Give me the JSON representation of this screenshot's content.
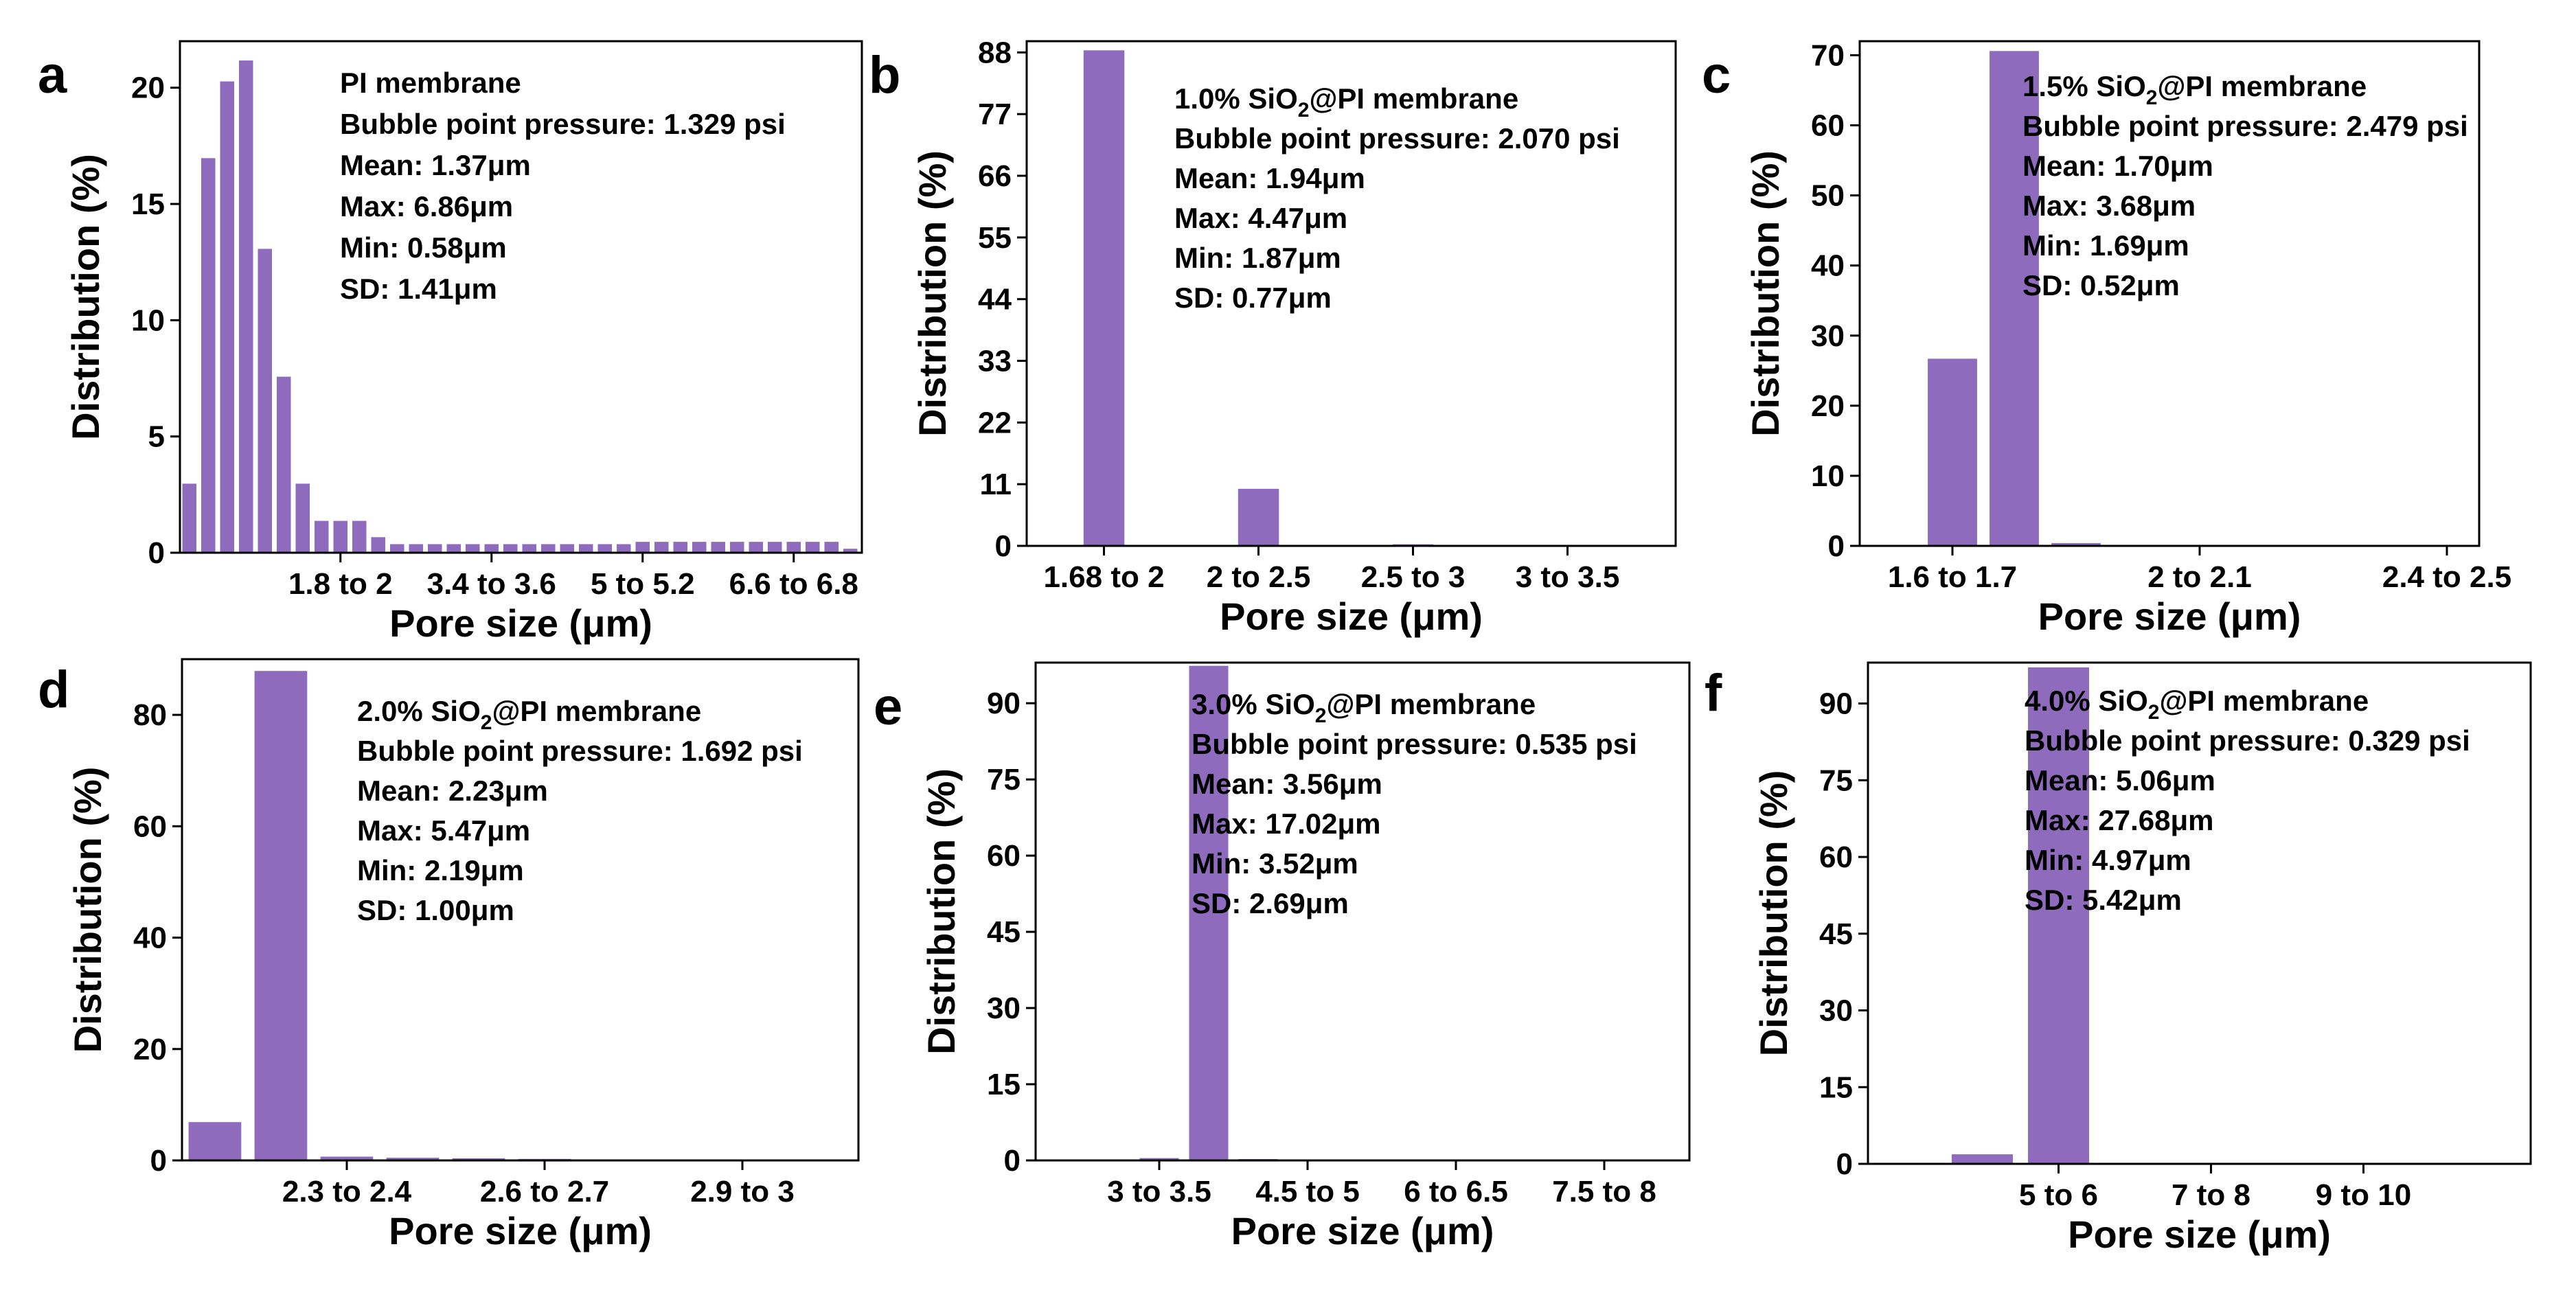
{
  "figure": {
    "bar_color": "#8e6bbd",
    "bar_edge": "#ffffff"
  },
  "chart_data": [
    {
      "panel": "a",
      "type": "bar",
      "ylabel": "Distribution (%)",
      "xlabel": "Pore size (μm)",
      "ylim": [
        0,
        22
      ],
      "yticks": [
        0,
        5,
        10,
        15,
        20
      ],
      "xtick_labels": [
        "1.8 to 2",
        "3.4 to 3.6",
        "5 to 5.2",
        "6.6 to 6.8"
      ],
      "xtick_bins": [
        8,
        16,
        24,
        32
      ],
      "values": [
        3.0,
        17.0,
        20.3,
        21.2,
        13.1,
        7.6,
        3.0,
        1.4,
        1.4,
        1.4,
        0.7,
        0.4,
        0.4,
        0.4,
        0.4,
        0.4,
        0.4,
        0.4,
        0.4,
        0.4,
        0.4,
        0.4,
        0.4,
        0.4,
        0.5,
        0.5,
        0.5,
        0.5,
        0.5,
        0.5,
        0.5,
        0.5,
        0.5,
        0.5,
        0.5,
        0.2
      ],
      "annotations": [
        {
          "text": "PI membrane"
        },
        {
          "text": "Bubble point pressure: 1.329 psi"
        },
        {
          "text": "Mean: 1.37μm"
        },
        {
          "text": "Max: 6.86μm"
        },
        {
          "text": "Min: 0.58μm"
        },
        {
          "text": "SD: 1.41μm"
        }
      ]
    },
    {
      "panel": "b",
      "type": "bar",
      "ylabel": "Distribution (%)",
      "xlabel": "Pore size (μm)",
      "ylim": [
        0,
        90
      ],
      "yticks": [
        0,
        11,
        22,
        33,
        44,
        55,
        66,
        77,
        88
      ],
      "xtick_labels": [
        "1.68 to 2",
        "2 to 2.5",
        "2.5 to 3",
        "3 to 3.5"
      ],
      "xtick_bins": [
        1,
        4,
        7,
        10
      ],
      "values": [
        0,
        88.5,
        0,
        0,
        10.3,
        0,
        0,
        0.4,
        0,
        0,
        0
      ],
      "annotations": [
        {
          "pre": "1.0% SiO",
          "sub": "2",
          "post": "@PI membrane"
        },
        {
          "text": "Bubble point pressure: 2.070 psi"
        },
        {
          "text": "Mean: 1.94μm"
        },
        {
          "text": "Max: 4.47μm"
        },
        {
          "text": "Min: 1.87μm"
        },
        {
          "text": "SD: 0.77μm"
        }
      ]
    },
    {
      "panel": "c",
      "type": "bar",
      "ylabel": "Distribution (%)",
      "xlabel": "Pore size (μm)",
      "ylim": [
        0,
        72
      ],
      "yticks": [
        0,
        10,
        20,
        30,
        40,
        50,
        60,
        70
      ],
      "xtick_labels": [
        "1.6 to 1.7",
        "2 to 2.1",
        "2.4 to 2.5"
      ],
      "xtick_bins": [
        1,
        5,
        9
      ],
      "values": [
        0,
        26.8,
        70.7,
        0.5,
        0.2,
        0.2,
        0.1,
        0.1,
        0.1,
        0.1,
        0
      ],
      "annotations": [
        {
          "pre": "1.5% SiO",
          "sub": "2",
          "post": "@PI membrane"
        },
        {
          "text": "Bubble point pressure: 2.479 psi"
        },
        {
          "text": "Mean: 1.70μm"
        },
        {
          "text": "Max: 3.68μm"
        },
        {
          "text": "Min: 1.69μm"
        },
        {
          "text": "SD: 0.52μm"
        }
      ]
    },
    {
      "panel": "d",
      "type": "bar",
      "ylabel": "Distribution (%)",
      "xlabel": "Pore size (μm)",
      "ylim": [
        0,
        90
      ],
      "yticks": [
        0,
        20,
        40,
        60,
        80
      ],
      "xtick_labels": [
        "2.3 to 2.4",
        "2.6 to 2.7",
        "2.9 to 3"
      ],
      "xtick_bins": [
        2,
        5,
        8
      ],
      "values": [
        7.0,
        88.0,
        0.8,
        0.6,
        0.5,
        0.4,
        0.3,
        0.3,
        0.2,
        0.1
      ],
      "annotations": [
        {
          "pre": "2.0% SiO",
          "sub": "2",
          "post": "@PI membrane"
        },
        {
          "text": "Bubble point pressure: 1.692 psi"
        },
        {
          "text": "Mean: 2.23μm"
        },
        {
          "text": "Max: 5.47μm"
        },
        {
          "text": "Min: 2.19μm"
        },
        {
          "text": "SD: 1.00μm"
        }
      ]
    },
    {
      "panel": "e",
      "type": "bar",
      "ylabel": "Distribution (%)",
      "xlabel": "Pore size (μm)",
      "ylim": [
        0,
        98
      ],
      "yticks": [
        0,
        15,
        30,
        45,
        60,
        75,
        90
      ],
      "xtick_labels": [
        "3 to 3.5",
        "4.5 to 5",
        "6 to 6.5",
        "7.5 to 8"
      ],
      "xtick_bins": [
        2,
        5,
        8,
        11
      ],
      "values": [
        0.3,
        0.3,
        0.6,
        97.5,
        0.4,
        0,
        0,
        0,
        0,
        0,
        0,
        0,
        0,
        0,
        0
      ],
      "annotations": [
        {
          "pre": "3.0% SiO",
          "sub": "2",
          "post": "@PI membrane"
        },
        {
          "text": "Bubble point pressure: 0.535 psi"
        },
        {
          "text": "Mean: 3.56μm"
        },
        {
          "text": "Max: 17.02μm"
        },
        {
          "text": "Min: 3.52μm"
        },
        {
          "text": "SD: 2.69μm"
        }
      ]
    },
    {
      "panel": "f",
      "type": "bar",
      "ylabel": "Distribution (%)",
      "xlabel": "Pore size (μm)",
      "ylim": [
        0,
        98
      ],
      "yticks": [
        0,
        15,
        30,
        45,
        60,
        75,
        90
      ],
      "xtick_labels": [
        "5 to 6",
        "7 to 8",
        "9 to 10"
      ],
      "xtick_bins": [
        2,
        4,
        6
      ],
      "values": [
        0,
        2.0,
        97.2,
        0,
        0,
        0,
        0,
        0
      ],
      "annotations": [
        {
          "pre": "4.0% SiO",
          "sub": "2",
          "post": "@PI membrane"
        },
        {
          "text": "Bubble point pressure: 0.329 psi"
        },
        {
          "text": "Mean: 5.06μm"
        },
        {
          "text": "Max: 27.68μm"
        },
        {
          "text": "Min: 4.97μm"
        },
        {
          "text": "SD: 5.42μm"
        }
      ]
    }
  ]
}
